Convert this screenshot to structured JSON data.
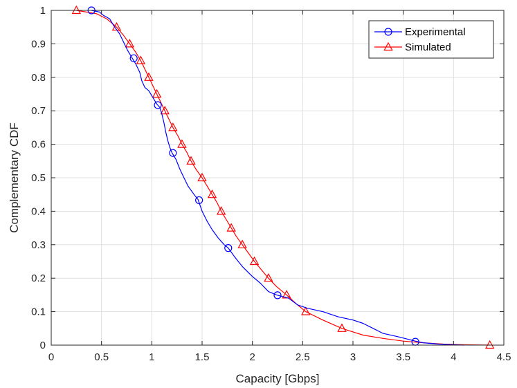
{
  "chart_data": {
    "type": "line",
    "title": "",
    "xlabel": "Capacity [Gbps]",
    "ylabel": "Complementary CDF",
    "xlim": [
      0,
      4.5
    ],
    "ylim": [
      0,
      1
    ],
    "xticks": [
      0,
      0.5,
      1,
      1.5,
      2,
      2.5,
      3,
      3.5,
      4,
      4.5
    ],
    "xtick_labels": [
      "0",
      "0.5",
      "1",
      "1.5",
      "2",
      "2.5",
      "3",
      "3.5",
      "4",
      "4.5"
    ],
    "yticks": [
      0,
      0.1,
      0.2,
      0.3,
      0.4,
      0.5,
      0.6,
      0.7,
      0.8,
      0.9,
      1
    ],
    "ytick_labels": [
      "0",
      "0.1",
      "0.2",
      "0.3",
      "0.4",
      "0.5",
      "0.6",
      "0.7",
      "0.8",
      "0.9",
      "1"
    ],
    "grid": true,
    "legend_position": "top-right",
    "series": [
      {
        "name": "Experimental",
        "color": "#0000ff",
        "marker": "circle",
        "line": [
          [
            0.4,
            1.0
          ],
          [
            0.48,
            0.995
          ],
          [
            0.52,
            0.985
          ],
          [
            0.58,
            0.975
          ],
          [
            0.62,
            0.955
          ],
          [
            0.68,
            0.93
          ],
          [
            0.72,
            0.905
          ],
          [
            0.76,
            0.88
          ],
          [
            0.8,
            0.86
          ],
          [
            0.84,
            0.84
          ],
          [
            0.88,
            0.815
          ],
          [
            0.9,
            0.79
          ],
          [
            0.93,
            0.77
          ],
          [
            0.97,
            0.76
          ],
          [
            1.0,
            0.745
          ],
          [
            1.03,
            0.73
          ],
          [
            1.05,
            0.72
          ],
          [
            1.08,
            0.71
          ],
          [
            1.1,
            0.69
          ],
          [
            1.12,
            0.665
          ],
          [
            1.14,
            0.635
          ],
          [
            1.16,
            0.61
          ],
          [
            1.18,
            0.59
          ],
          [
            1.2,
            0.575
          ],
          [
            1.24,
            0.555
          ],
          [
            1.28,
            0.525
          ],
          [
            1.32,
            0.5
          ],
          [
            1.36,
            0.475
          ],
          [
            1.42,
            0.45
          ],
          [
            1.46,
            0.435
          ],
          [
            1.5,
            0.4
          ],
          [
            1.55,
            0.37
          ],
          [
            1.6,
            0.345
          ],
          [
            1.66,
            0.32
          ],
          [
            1.72,
            0.3
          ],
          [
            1.76,
            0.29
          ],
          [
            1.82,
            0.265
          ],
          [
            1.9,
            0.235
          ],
          [
            2.0,
            0.205
          ],
          [
            2.08,
            0.185
          ],
          [
            2.16,
            0.16
          ],
          [
            2.24,
            0.15
          ],
          [
            2.3,
            0.145
          ],
          [
            2.36,
            0.14
          ],
          [
            2.45,
            0.12
          ],
          [
            2.55,
            0.11
          ],
          [
            2.7,
            0.1
          ],
          [
            2.85,
            0.085
          ],
          [
            3.0,
            0.075
          ],
          [
            3.1,
            0.065
          ],
          [
            3.2,
            0.05
          ],
          [
            3.3,
            0.035
          ],
          [
            3.45,
            0.025
          ],
          [
            3.62,
            0.012
          ],
          [
            3.7,
            0.007
          ],
          [
            3.85,
            0.003
          ],
          [
            4.0,
            0.001
          ],
          [
            4.1,
            0.0
          ]
        ],
        "markers": [
          [
            0.4,
            1.0
          ],
          [
            0.82,
            0.857
          ],
          [
            1.06,
            0.717
          ],
          [
            1.21,
            0.574
          ],
          [
            1.47,
            0.433
          ],
          [
            1.76,
            0.29
          ],
          [
            2.25,
            0.149
          ],
          [
            3.62,
            0.01
          ]
        ]
      },
      {
        "name": "Simulated",
        "color": "#ff0000",
        "marker": "triangle",
        "line": [
          [
            0.25,
            1.0
          ],
          [
            0.35,
            0.995
          ],
          [
            0.45,
            0.99
          ],
          [
            0.55,
            0.975
          ],
          [
            0.65,
            0.95
          ],
          [
            0.72,
            0.925
          ],
          [
            0.78,
            0.9
          ],
          [
            0.84,
            0.875
          ],
          [
            0.89,
            0.85
          ],
          [
            0.93,
            0.825
          ],
          [
            0.97,
            0.8
          ],
          [
            1.01,
            0.775
          ],
          [
            1.05,
            0.75
          ],
          [
            1.09,
            0.725
          ],
          [
            1.13,
            0.7
          ],
          [
            1.17,
            0.675
          ],
          [
            1.21,
            0.65
          ],
          [
            1.26,
            0.625
          ],
          [
            1.3,
            0.6
          ],
          [
            1.35,
            0.575
          ],
          [
            1.39,
            0.55
          ],
          [
            1.44,
            0.525
          ],
          [
            1.5,
            0.5
          ],
          [
            1.55,
            0.475
          ],
          [
            1.6,
            0.45
          ],
          [
            1.65,
            0.425
          ],
          [
            1.69,
            0.4
          ],
          [
            1.74,
            0.375
          ],
          [
            1.79,
            0.35
          ],
          [
            1.84,
            0.325
          ],
          [
            1.9,
            0.3
          ],
          [
            1.96,
            0.275
          ],
          [
            2.02,
            0.25
          ],
          [
            2.09,
            0.225
          ],
          [
            2.16,
            0.2
          ],
          [
            2.24,
            0.175
          ],
          [
            2.34,
            0.15
          ],
          [
            2.43,
            0.125
          ],
          [
            2.53,
            0.1
          ],
          [
            2.7,
            0.075
          ],
          [
            2.89,
            0.05
          ],
          [
            3.1,
            0.03
          ],
          [
            3.3,
            0.02
          ],
          [
            3.5,
            0.012
          ],
          [
            3.7,
            0.007
          ],
          [
            3.9,
            0.003
          ],
          [
            4.1,
            0.001
          ],
          [
            4.36,
            0.0
          ]
        ],
        "markers": [
          [
            0.25,
            1.0
          ],
          [
            0.65,
            0.95
          ],
          [
            0.78,
            0.9
          ],
          [
            0.89,
            0.85
          ],
          [
            0.97,
            0.8
          ],
          [
            1.05,
            0.75
          ],
          [
            1.13,
            0.7
          ],
          [
            1.21,
            0.65
          ],
          [
            1.3,
            0.6
          ],
          [
            1.39,
            0.55
          ],
          [
            1.5,
            0.5
          ],
          [
            1.6,
            0.45
          ],
          [
            1.69,
            0.4
          ],
          [
            1.79,
            0.35
          ],
          [
            1.9,
            0.3
          ],
          [
            2.02,
            0.25
          ],
          [
            2.16,
            0.2
          ],
          [
            2.34,
            0.15
          ],
          [
            2.53,
            0.1
          ],
          [
            2.89,
            0.05
          ],
          [
            4.36,
            0.0
          ]
        ]
      }
    ]
  }
}
